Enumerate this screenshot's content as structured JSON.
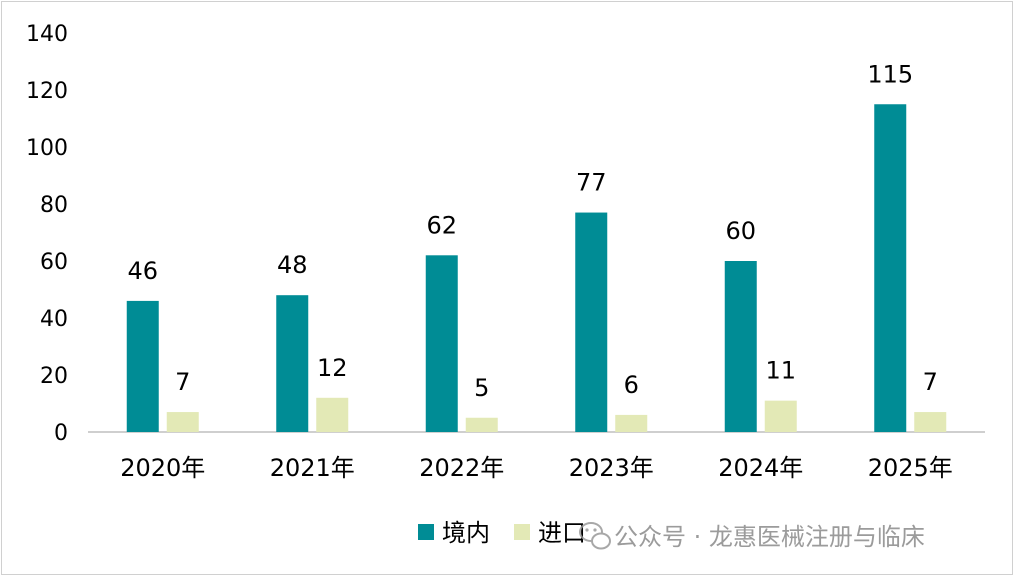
{
  "chart_data": {
    "type": "bar",
    "categories": [
      "2020年",
      "2021年",
      "2022年",
      "2023年",
      "2024年",
      "2025年"
    ],
    "series": [
      {
        "name": "境内",
        "values": [
          46,
          48,
          62,
          77,
          60,
          115
        ],
        "color": "#008C95"
      },
      {
        "name": "进口",
        "values": [
          7,
          12,
          5,
          6,
          11,
          7
        ],
        "color": "#E3E9B6"
      }
    ],
    "yticks": [
      "0",
      "20",
      "40",
      "60",
      "80",
      "100",
      "120",
      "140"
    ],
    "ylim": [
      0,
      140
    ],
    "grid": false,
    "legend": "bottom-right",
    "title": "",
    "xlabel": "",
    "ylabel": ""
  },
  "watermark": {
    "icon": "wechat-icon",
    "text": "公众号 · 龙惠医械注册与临床"
  }
}
